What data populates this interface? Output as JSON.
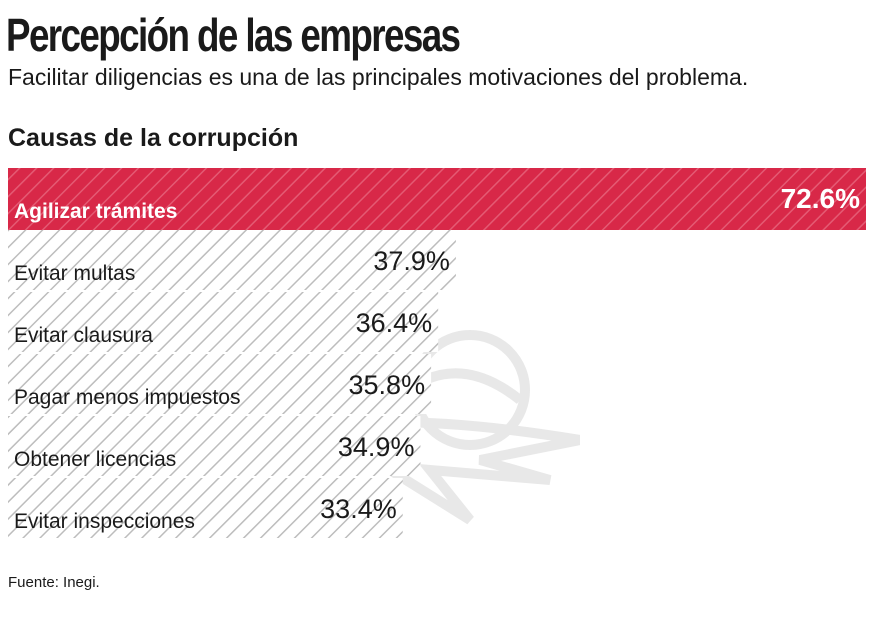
{
  "header": {
    "title": "Percepción de las empresas",
    "subtitle": "Facilitar diligencias es una de las principales motivaciones del problema.",
    "section_title": "Causas de la corrupción"
  },
  "footer": {
    "source": "Fuente: Inegi."
  },
  "colors": {
    "highlight": "#d82848",
    "hatch": "#bdbdbd",
    "text": "#1a1a1a"
  },
  "chart_data": {
    "type": "bar",
    "orientation": "horizontal",
    "title": "Causas de la corrupción",
    "categories": [
      "Agilizar trámites",
      "Evitar multas",
      "Evitar clausura",
      "Pagar menos impuestos",
      "Obtener licencias",
      "Evitar inspecciones"
    ],
    "values": [
      72.6,
      37.9,
      36.4,
      35.8,
      34.9,
      33.4
    ],
    "value_labels": [
      "72.6%",
      "37.9%",
      "36.4%",
      "35.8%",
      "34.9%",
      "33.4%"
    ],
    "highlight_index": 0,
    "unit": "%",
    "xlim": [
      0,
      72.6
    ]
  }
}
